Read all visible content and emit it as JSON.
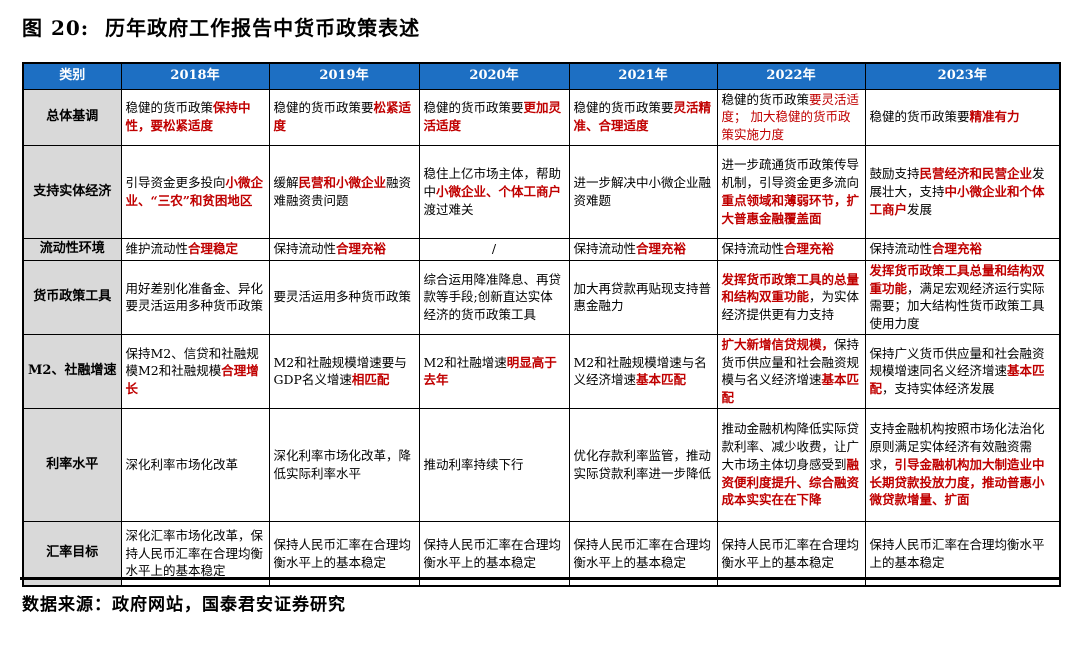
{
  "title": "图 20:  历年政府工作报告中货币政策表述",
  "source_note": "数据来源：政府网站，国泰君安证券研究",
  "colors": {
    "header_bg": "#1d6fc3",
    "header_text": "#ffffff",
    "label_bg": "#d9d9d9",
    "highlight_red": "#c00000",
    "border": "#000000"
  },
  "table": {
    "column_headers": [
      "类别",
      "2018年",
      "2019年",
      "2020年",
      "2021年",
      "2022年",
      "2023年"
    ],
    "rows": [
      {
        "label": "总体基调",
        "cells": [
          {
            "segments": [
              {
                "text": "稳健的货币政策",
                "style": "black"
              },
              {
                "text": "保持中性，要松紧适度",
                "style": "red-bold"
              }
            ]
          },
          {
            "segments": [
              {
                "text": "稳健的货币政策要",
                "style": "black"
              },
              {
                "text": "松紧适度",
                "style": "red-bold"
              }
            ]
          },
          {
            "segments": [
              {
                "text": "稳健的货币政策要",
                "style": "black"
              },
              {
                "text": "更加灵活适度",
                "style": "red-bold"
              }
            ]
          },
          {
            "segments": [
              {
                "text": "稳健的货币政策要",
                "style": "black"
              },
              {
                "text": "灵活精准、合理适度",
                "style": "red-bold"
              }
            ]
          },
          {
            "segments": [
              {
                "text": "稳健的货币政策",
                "style": "black"
              },
              {
                "text": "要灵活适度； 加大稳健的货币政策实施力度",
                "style": "red"
              }
            ]
          },
          {
            "segments": [
              {
                "text": "稳健的货币政策要",
                "style": "black"
              },
              {
                "text": "精准有力",
                "style": "red-bold"
              }
            ]
          }
        ]
      },
      {
        "label": "支持实体经济",
        "cells": [
          {
            "segments": [
              {
                "text": "引导资金更多投向",
                "style": "black"
              },
              {
                "text": "小微企业、“三农”和贫困地区",
                "style": "red-bold"
              }
            ]
          },
          {
            "segments": [
              {
                "text": "缓解",
                "style": "black"
              },
              {
                "text": "民营和小微企业",
                "style": "red-bold"
              },
              {
                "text": "融资难融资贵问题",
                "style": "black"
              }
            ]
          },
          {
            "segments": [
              {
                "text": "稳住上亿市场主体，帮助中",
                "style": "black"
              },
              {
                "text": "小微企业、个体工商户",
                "style": "red-bold"
              },
              {
                "text": "渡过难关",
                "style": "black"
              }
            ]
          },
          {
            "segments": [
              {
                "text": "进一步解决中小微企业融资难题",
                "style": "black"
              }
            ]
          },
          {
            "segments": [
              {
                "text": "进一步疏通货币政策传导机制，引导资金更多流向",
                "style": "black"
              },
              {
                "text": "重点领域和薄弱环节，扩大普惠金融覆盖面",
                "style": "red-bold"
              }
            ]
          },
          {
            "segments": [
              {
                "text": "鼓励支持",
                "style": "black"
              },
              {
                "text": "民营经济和民营企业",
                "style": "red-bold"
              },
              {
                "text": "发展壮大，支持",
                "style": "black"
              },
              {
                "text": "中小微企业和个体工商户",
                "style": "red-bold"
              },
              {
                "text": "发展",
                "style": "black"
              }
            ]
          }
        ]
      },
      {
        "label": "流动性环境",
        "cells": [
          {
            "segments": [
              {
                "text": "维护流动性",
                "style": "black"
              },
              {
                "text": "合理稳定",
                "style": "red-bold"
              }
            ]
          },
          {
            "segments": [
              {
                "text": "保持流动性",
                "style": "black"
              },
              {
                "text": "合理充裕",
                "style": "red-bold"
              }
            ]
          },
          {
            "align": "center",
            "segments": [
              {
                "text": "/",
                "style": "black"
              }
            ]
          },
          {
            "segments": [
              {
                "text": "保持流动性",
                "style": "black"
              },
              {
                "text": "合理充裕",
                "style": "red-bold"
              }
            ]
          },
          {
            "segments": [
              {
                "text": "保持流动性",
                "style": "black"
              },
              {
                "text": "合理充裕",
                "style": "red-bold"
              }
            ]
          },
          {
            "segments": [
              {
                "text": "保持流动性",
                "style": "black"
              },
              {
                "text": "合理充裕",
                "style": "red-bold"
              }
            ]
          }
        ]
      },
      {
        "label": "货币政策工具",
        "cells": [
          {
            "segments": [
              {
                "text": "用好差别化准备金、异化 要灵活运用多种货币政策",
                "style": "black"
              }
            ]
          },
          {
            "segments": [
              {
                "text": "要灵活运用多种货币政策",
                "style": "black"
              }
            ]
          },
          {
            "segments": [
              {
                "text": "综合运用降准降息、再贷款等手段;创新直达实体经济的货币政策工具",
                "style": "black"
              }
            ]
          },
          {
            "segments": [
              {
                "text": "加大再贷款再贴现支持普惠金融力",
                "style": "black"
              }
            ]
          },
          {
            "segments": [
              {
                "text": "发挥货币政策工具的总量和结构双重功能",
                "style": "red-bold"
              },
              {
                "text": "，为实体经济提供更有力支持",
                "style": "black"
              }
            ]
          },
          {
            "segments": [
              {
                "text": "发挥货币政策工具总量和结构双重功能",
                "style": "red-bold"
              },
              {
                "text": "，满足宏观经济运行实际需要；加大结构性货币政策工具使用力度",
                "style": "black"
              }
            ]
          }
        ]
      },
      {
        "label": "M2、社融增速",
        "cells": [
          {
            "segments": [
              {
                "text": "保持M2、信贷和社融规模M2和社融规模",
                "style": "black"
              },
              {
                "text": "合理增长",
                "style": "red-bold"
              }
            ]
          },
          {
            "segments": [
              {
                "text": "M2和社融规模增速要与GDP名义增速",
                "style": "black"
              },
              {
                "text": "相匹配",
                "style": "red-bold"
              }
            ]
          },
          {
            "segments": [
              {
                "text": "M2和社融增速",
                "style": "black"
              },
              {
                "text": "明显高于去年",
                "style": "red-bold"
              }
            ]
          },
          {
            "segments": [
              {
                "text": "M2和社融规模增速与名义经济增速",
                "style": "black"
              },
              {
                "text": "基本匹配",
                "style": "red-bold"
              }
            ]
          },
          {
            "segments": [
              {
                "text": "扩大新增信贷规模，",
                "style": "red-bold"
              },
              {
                "text": "保持货币供应量和社会融资规模与名义经济增速",
                "style": "black"
              },
              {
                "text": "基本匹配",
                "style": "red-bold"
              }
            ]
          },
          {
            "segments": [
              {
                "text": "保持广义货币供应量和社会融资规模增速同名义经济增速",
                "style": "black"
              },
              {
                "text": "基本匹配",
                "style": "red-bold"
              },
              {
                "text": "，支持实体经济发展",
                "style": "black"
              }
            ]
          }
        ]
      },
      {
        "label": "利率水平",
        "cells": [
          {
            "segments": [
              {
                "text": "深化利率市场化改革",
                "style": "black"
              }
            ]
          },
          {
            "segments": [
              {
                "text": "深化利率市场化改革，降低实际利率水平",
                "style": "black"
              }
            ]
          },
          {
            "segments": [
              {
                "text": "推动利率持续下行",
                "style": "black"
              }
            ]
          },
          {
            "segments": [
              {
                "text": "优化存款利率监管，推动实际贷款利率进一步降低",
                "style": "black"
              }
            ]
          },
          {
            "segments": [
              {
                "text": "推动金融机构降低实际贷款利率、减少收费，让广大市场主体切身感受到",
                "style": "black"
              },
              {
                "text": "融资便利度提升、综合融资成本实实在在下降",
                "style": "red-bold"
              }
            ]
          },
          {
            "segments": [
              {
                "text": "支持金融机构按照市场化法治化原则满足实体经济有效融资需求，",
                "style": "black"
              },
              {
                "text": "引导金融机构加大制造业中长期贷款投放力度，推动普惠小微贷款增量、扩面",
                "style": "red-bold"
              }
            ]
          }
        ]
      },
      {
        "label": "汇率目标",
        "cells": [
          {
            "segments": [
              {
                "text": "深化汇率市场化改革，保持人民币汇率在合理均衡水平上的基本稳定",
                "style": "black"
              }
            ]
          },
          {
            "segments": [
              {
                "text": "保持人民币汇率在合理均衡水平上的基本稳定",
                "style": "black"
              }
            ]
          },
          {
            "segments": [
              {
                "text": "保持人民币汇率在合理均衡水平上的基本稳定",
                "style": "black"
              }
            ]
          },
          {
            "segments": [
              {
                "text": "保持人民币汇率在合理均衡水平上的基本稳定",
                "style": "black"
              }
            ]
          },
          {
            "segments": [
              {
                "text": "保持人民币汇率在合理均衡水平上的基本稳定",
                "style": "black"
              }
            ]
          },
          {
            "segments": [
              {
                "text": "保持人民币汇率在合理均衡水平上的基本稳定",
                "style": "black"
              }
            ]
          }
        ]
      }
    ]
  }
}
